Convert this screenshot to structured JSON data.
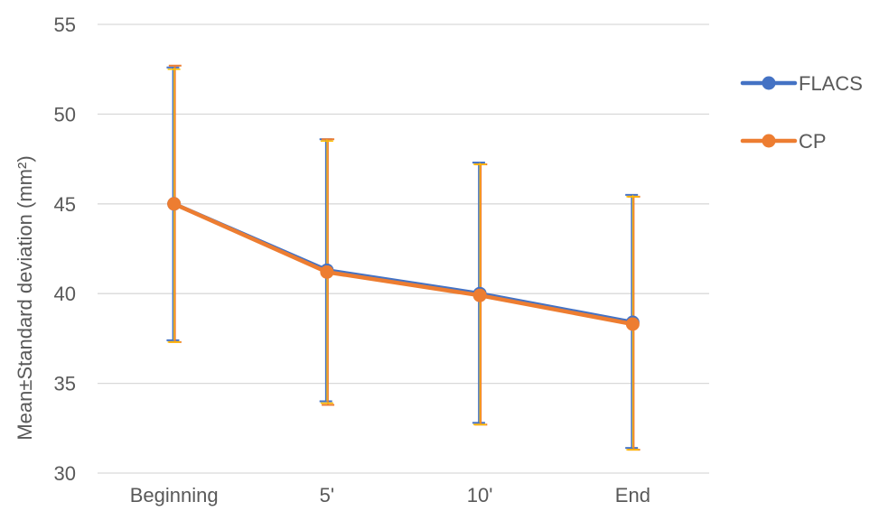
{
  "chart_data": {
    "type": "line",
    "title": "",
    "xlabel": "",
    "ylabel": "Mean±Standard deviation (mm²)",
    "categories": [
      "Beginning",
      "5'",
      "10'",
      "End"
    ],
    "ylim": [
      30,
      55
    ],
    "yticks": [
      30,
      35,
      40,
      45,
      50,
      55
    ],
    "grid": true,
    "legend_position": "right",
    "series": [
      {
        "name": "FLACS",
        "color": "#4472c4",
        "values": [
          45.0,
          41.3,
          40.0,
          38.4
        ],
        "err_low": [
          37.4,
          34.0,
          32.8,
          31.4
        ],
        "err_high": [
          52.6,
          48.6,
          47.3,
          45.5
        ]
      },
      {
        "name": "CP",
        "color": "#ed7d31",
        "values": [
          45.0,
          41.2,
          39.9,
          38.3
        ],
        "err_low": [
          37.3,
          33.8,
          32.7,
          31.3
        ],
        "err_high": [
          52.7,
          48.6,
          47.2,
          45.4
        ]
      }
    ],
    "errorbar_cap_color": "#ffc000"
  }
}
